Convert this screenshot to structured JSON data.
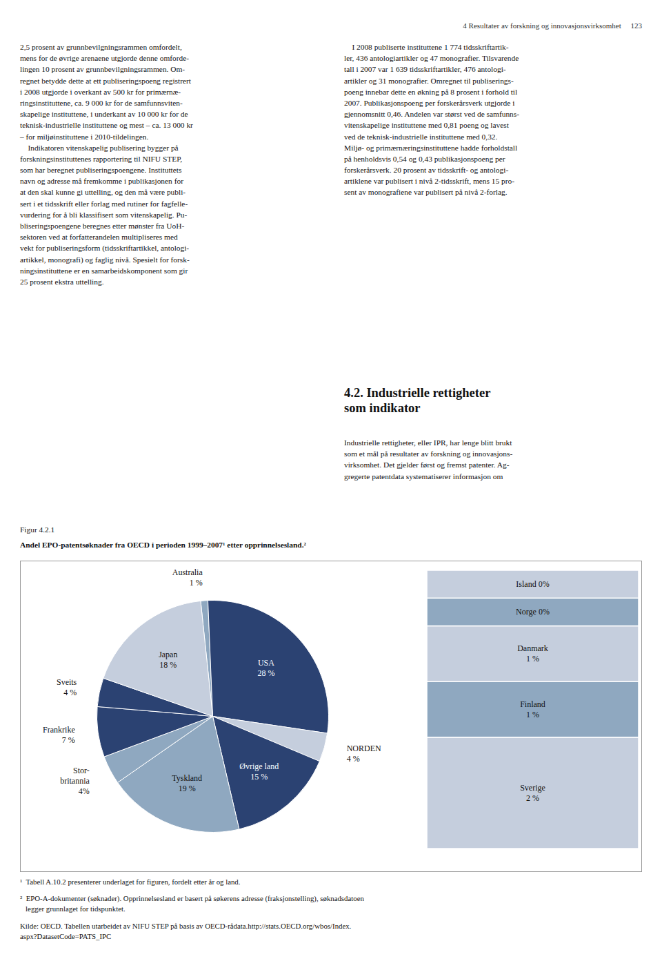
{
  "chart_data": [
    {
      "type": "pie",
      "title": "Andel EPO-patentsøknader fra OECD i perioden 1999–2007¹ etter opprinnelsesland.²",
      "subtitle": "Figur 4.2.1",
      "categories": [
        "Australia",
        "USA",
        "NORDEN",
        "Øvrige land",
        "Tyskland",
        "Stor-\nbritannia",
        "Frankrike",
        "Sveits",
        "Japan"
      ],
      "values": [
        1,
        28,
        4,
        15,
        19,
        4,
        7,
        4,
        18
      ],
      "value_labels": [
        "1 %",
        "28 %",
        "4 %",
        "15 %",
        "19 %",
        "4%",
        "7 %",
        "4 %",
        "18 %"
      ],
      "colors": [
        "#8fa8c0",
        "#2b4272",
        "#c5cedd",
        "#2b4272",
        "#8fa8c0",
        "#8fa8c0",
        "#2b4272",
        "#2b4272",
        "#c5cedd"
      ],
      "data_labels": true,
      "annotations": [
        "4 Resultater av forskning og innovasjonsvirksomhet     123",
        "2,5 prosent av grunnbevilgningsrammen omfordelt,\nmens for de øvrige arenaene utgjorde denne omforde-\nlingen 10 prosent av grunnbevilgningsrammen. Om-\nregnet betydde dette at ett publiseringspoeng registrert\ni 2008 utgjorde i overkant av 500 kr for primærnæ-\nringsinstituttene, ca. 9 000 kr for de samfunnsviten-\nskapelige instituttene, i underkant av 10 000 kr for de\nteknisk-industrielle instituttene og mest – ca. 13 000 kr\n– for miljøinstituttene i 2010-tildelingen.\n    Indikatoren vitenskapelig publisering bygger på\nforskningsinstituttenes rapportering til NIFU STEP,\nsom har beregnet publiseringspoengene. Instituttets\nnavn og adresse må fremkomme i publikasjonen for\nat den skal kunne gi uttelling, og den må være publi-\nsert i et tidsskrift eller forlag med rutiner for fagfelle-\nvurdering for å bli klassifisert som vitenskapelig. Pu-\nbliseringspoengene beregnes etter mønster fra UoH-\nsektoren ved at forfatterandelen multipliseres med\nvekt for publiseringsform (tidsskriftartikkel, antologi-\nartikkel, monografi) og faglig nivå. Spesielt for forsk-\nningsinstituttene er en samarbeidskomponent som gir\n25 prosent ekstra uttelling.",
        "    I 2008 publiserte instituttene 1 774 tidsskriftartik-\nler, 436 antologiartikler og 47 monografier. Tilsvarende\ntall i 2007 var 1 639 tidsskriftartikler, 476 antologi-\nartikler og 31 monografier. Omregnet til publiserings-\npoeng innebar dette en økning på 8 prosent i forhold til\n2007. Publikasjonspoeng per forskerårsverk utgjorde i\ngjennomsnitt 0,46. Andelen var størst ved de samfunns-\nvitenskapelige instituttene med 0,81 poeng og lavest\nved de teknisk-industrielle instituttene med 0,32.\nMiljø- og primærnæringsinstituttene hadde forholdstall\npå henholdsvis 0,54 og 0,43 publikasjonspoeng per\nforskerårsverk. 20 prosent av tidsskrift- og antologi-\nartiklene var publisert i nivå 2-tidsskrift, mens 15 pro-\nsent av monografiene var publisert på nivå 2-forlag.",
        "4.2. Industrielle rettigheter\nsom indikator",
        "Industrielle rettigheter, eller IPR, har lenge blitt brukt\nsom et mål på resultater av forskning og innovasjons-\nvirksomhet. Det gjelder først og fremst patenter. Ag-\ngregerte patentdata systematiserer informasjon om",
        "¹  Tabell A.10.2 presenterer underlaget for figuren, fordelt etter år og land.",
        "²  EPO-A-dokumenter (søknader). Opprinnelsesland er basert på søkerens adresse (fraksjonstellin​g), søknadsdatoen\n   legger grunnlaget for tidspunktet.",
        "Kilde: OECD. Tabellen utarbeidet av NIFU STEP på basis av OECD-rådata.http://stats.OECD.org/wbos/Index.\naspx?DatasetCode=PATS_IPC"
      ]
    },
    {
      "type": "bar",
      "stacked": true,
      "categories": [
        null
      ],
      "series": [
        {
          "name": "Island 0%",
          "color": "#c5cedd",
          "values": [
            0.5
          ]
        },
        {
          "name": "Norge 0%",
          "color": "#8fa8c0",
          "values": [
            0.5
          ]
        },
        {
          "name": "Danmark\n1 %",
          "color": "#c5cedd",
          "values": [
            1.0
          ]
        },
        {
          "name": "Finland\n1 %",
          "color": "#8fa8c0",
          "values": [
            1.0
          ]
        },
        {
          "name": "Sverige\n2 %",
          "color": "#c5cedd",
          "values": [
            2.0
          ]
        }
      ],
      "ylim": [
        0,
        5
      ],
      "tick_labels": false
    }
  ]
}
